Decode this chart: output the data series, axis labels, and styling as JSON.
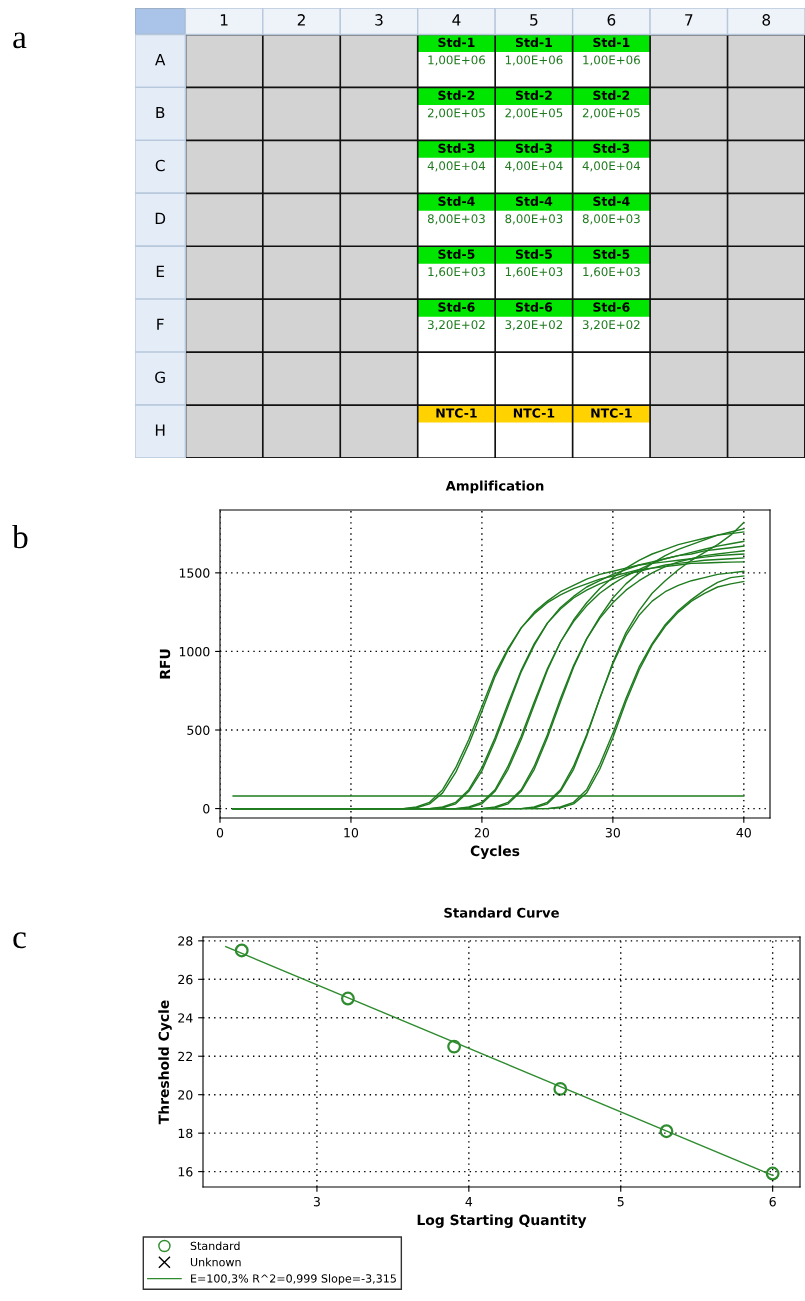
{
  "chart_data": [
    {
      "type": "heatmap",
      "annotations": [
        "a"
      ],
      "cells": [
        [
          null,
          null,
          null,
          null,
          null,
          null,
          null,
          null
        ],
        [
          null,
          null,
          null,
          null,
          null,
          null,
          null,
          null
        ],
        [
          null,
          null,
          null,
          null,
          null,
          null,
          null,
          null
        ],
        [
          null,
          null,
          null,
          null,
          null,
          null,
          null,
          null
        ],
        [
          null,
          null,
          null,
          null,
          null,
          null,
          null,
          null
        ],
        [
          null,
          null,
          null,
          null,
          null,
          null,
          null,
          null
        ],
        [
          null,
          null,
          null,
          null,
          null,
          null,
          null,
          null
        ],
        [
          null,
          null,
          null,
          null,
          null,
          null,
          null,
          null
        ]
      ],
      "categories": [
        "1",
        "2",
        "3",
        "4",
        "5",
        "6",
        "7",
        "8"
      ],
      "y_categories": [
        "A",
        "B",
        "C",
        "D",
        "E",
        "F",
        "G",
        "H"
      ],
      "cell_labels": [
        [
          null,
          null,
          null,
          "Std-1\n1,00E+06",
          "Std-1\n1,00E+06",
          "Std-1\n1,00E+06",
          null,
          null
        ],
        [
          null,
          null,
          null,
          "Std-2\n2,00E+05",
          "Std-2\n2,00E+05",
          "Std-2\n2,00E+05",
          null,
          null
        ],
        [
          null,
          null,
          null,
          "Std-3\n4,00E+04",
          "Std-3\n4,00E+04",
          "Std-3\n4,00E+04",
          null,
          null
        ],
        [
          null,
          null,
          null,
          "Std-4\n8,00E+03",
          "Std-4\n8,00E+03",
          "Std-4\n8,00E+03",
          null,
          null
        ],
        [
          null,
          null,
          null,
          "Std-5\n1,60E+03",
          "Std-5\n1,60E+03",
          "Std-5\n1,60E+03",
          null,
          null
        ],
        [
          null,
          null,
          null,
          "Std-6\n3,20E+02",
          "Std-6\n3,20E+02",
          "Std-6\n3,20E+02",
          null,
          null
        ],
        [
          null,
          null,
          null,
          null,
          null,
          null,
          null,
          null
        ],
        [
          null,
          null,
          null,
          "NTC-1",
          "NTC-1",
          "NTC-1",
          null,
          null
        ]
      ],
      "colors": [
        [
          null,
          null,
          null,
          "#00e600",
          "#00e600",
          "#00e600",
          null,
          null
        ],
        [
          null,
          null,
          null,
          "#00e600",
          "#00e600",
          "#00e600",
          null,
          null
        ],
        [
          null,
          null,
          null,
          "#00e600",
          "#00e600",
          "#00e600",
          null,
          null
        ],
        [
          null,
          null,
          null,
          "#00e600",
          "#00e600",
          "#00e600",
          null,
          null
        ],
        [
          null,
          null,
          null,
          "#00e600",
          "#00e600",
          "#00e600",
          null,
          null
        ],
        [
          null,
          null,
          null,
          "#00e600",
          "#00e600",
          "#00e600",
          null,
          null
        ],
        [
          null,
          null,
          null,
          "#ffffff",
          "#ffffff",
          "#ffffff",
          null,
          null
        ],
        [
          null,
          null,
          null,
          "#ffd200",
          "#ffd200",
          "#ffd200",
          null,
          null
        ]
      ]
    },
    {
      "type": "line",
      "title": "Amplification",
      "xlabel": "Cycles",
      "ylabel": "RFU",
      "annotations": [
        "b"
      ],
      "xlim": [
        0,
        42
      ],
      "ylim": [
        -60,
        1900
      ],
      "xticks": [
        0,
        10,
        20,
        30,
        40
      ],
      "yticks": [
        0,
        500,
        1000,
        1500
      ],
      "grid": true,
      "marker": "none",
      "x": [
        1,
        2,
        3,
        4,
        5,
        6,
        7,
        8,
        9,
        10,
        11,
        12,
        13,
        14,
        15,
        16,
        17,
        18,
        19,
        20,
        21,
        22,
        23,
        24,
        25,
        26,
        27,
        28,
        29,
        30,
        31,
        32,
        33,
        34,
        35,
        36,
        37,
        38,
        39,
        40
      ],
      "series": [
        {
          "color": "#1e7b1e",
          "values": [
            0,
            0,
            0,
            0,
            0,
            0,
            0,
            0,
            0,
            0,
            0,
            0,
            0,
            0,
            10,
            40,
            120,
            260,
            440,
            650,
            860,
            1020,
            1150,
            1240,
            1310,
            1360,
            1400,
            1430,
            1460,
            1480,
            1500,
            1520,
            1530,
            1540,
            1550,
            1560,
            1563,
            1566,
            1568,
            1570
          ]
        },
        {
          "color": "#1e7b1e",
          "values": [
            0,
            0,
            0,
            0,
            0,
            0,
            0,
            0,
            0,
            0,
            0,
            0,
            0,
            0,
            5,
            30,
            100,
            230,
            410,
            620,
            840,
            1010,
            1150,
            1250,
            1320,
            1380,
            1420,
            1460,
            1490,
            1510,
            1530,
            1550,
            1560,
            1570,
            1580,
            1590,
            1600,
            1610,
            1615,
            1620
          ]
        },
        {
          "color": "#1e7b1e",
          "values": [
            0,
            0,
            0,
            0,
            0,
            0,
            0,
            0,
            0,
            0,
            0,
            0,
            0,
            0,
            0,
            0,
            10,
            40,
            120,
            260,
            450,
            670,
            880,
            1050,
            1180,
            1270,
            1340,
            1390,
            1430,
            1460,
            1490,
            1510,
            1530,
            1550,
            1560,
            1570,
            1580,
            1585,
            1590,
            1595
          ]
        },
        {
          "color": "#1e7b1e",
          "values": [
            0,
            0,
            0,
            0,
            0,
            0,
            0,
            0,
            0,
            0,
            0,
            0,
            0,
            0,
            0,
            0,
            5,
            30,
            110,
            240,
            430,
            650,
            870,
            1040,
            1180,
            1280,
            1350,
            1410,
            1450,
            1490,
            1520,
            1550,
            1570,
            1590,
            1610,
            1620,
            1640,
            1650,
            1660,
            1670
          ]
        },
        {
          "color": "#1e7b1e",
          "values": [
            0,
            0,
            0,
            0,
            0,
            0,
            0,
            0,
            0,
            0,
            0,
            0,
            0,
            0,
            0,
            0,
            0,
            0,
            10,
            40,
            120,
            270,
            460,
            680,
            890,
            1060,
            1190,
            1290,
            1370,
            1430,
            1480,
            1520,
            1560,
            1590,
            1610,
            1630,
            1650,
            1670,
            1685,
            1700
          ]
        },
        {
          "color": "#1e7b1e",
          "values": [
            0,
            0,
            0,
            0,
            0,
            0,
            0,
            0,
            0,
            0,
            0,
            0,
            0,
            0,
            0,
            0,
            0,
            0,
            5,
            30,
            110,
            250,
            440,
            660,
            880,
            1060,
            1200,
            1310,
            1400,
            1470,
            1530,
            1580,
            1620,
            1650,
            1680,
            1700,
            1720,
            1740,
            1750,
            1760
          ]
        },
        {
          "color": "#1e7b1e",
          "values": [
            0,
            0,
            0,
            0,
            0,
            0,
            0,
            0,
            0,
            0,
            0,
            0,
            0,
            0,
            0,
            0,
            0,
            0,
            0,
            0,
            10,
            40,
            120,
            270,
            470,
            700,
            910,
            1080,
            1210,
            1310,
            1390,
            1450,
            1500,
            1540,
            1570,
            1590,
            1610,
            1620,
            1630,
            1640
          ]
        },
        {
          "color": "#1e7b1e",
          "values": [
            0,
            0,
            0,
            0,
            0,
            0,
            0,
            0,
            0,
            0,
            0,
            0,
            0,
            0,
            0,
            0,
            0,
            0,
            0,
            0,
            5,
            30,
            110,
            250,
            450,
            680,
            900,
            1080,
            1220,
            1340,
            1430,
            1500,
            1560,
            1610,
            1650,
            1680,
            1710,
            1740,
            1760,
            1780
          ]
        },
        {
          "color": "#1e7b1e",
          "values": [
            0,
            0,
            0,
            0,
            0,
            0,
            0,
            0,
            0,
            0,
            0,
            0,
            0,
            0,
            0,
            0,
            0,
            0,
            0,
            0,
            0,
            0,
            0,
            10,
            40,
            120,
            270,
            470,
            700,
            920,
            1100,
            1230,
            1320,
            1380,
            1420,
            1450,
            1470,
            1490,
            1500,
            1510
          ]
        },
        {
          "color": "#1e7b1e",
          "values": [
            0,
            0,
            0,
            0,
            0,
            0,
            0,
            0,
            0,
            0,
            0,
            0,
            0,
            0,
            0,
            0,
            0,
            0,
            0,
            0,
            0,
            0,
            0,
            5,
            30,
            110,
            250,
            460,
            700,
            930,
            1120,
            1260,
            1370,
            1450,
            1520,
            1580,
            1630,
            1680,
            1740,
            1820
          ]
        },
        {
          "color": "#1e7b1e",
          "values": [
            0,
            0,
            0,
            0,
            0,
            0,
            0,
            0,
            0,
            0,
            0,
            0,
            0,
            0,
            0,
            0,
            0,
            0,
            0,
            0,
            0,
            0,
            0,
            0,
            0,
            10,
            40,
            120,
            280,
            480,
            700,
            900,
            1050,
            1170,
            1260,
            1330,
            1390,
            1440,
            1470,
            1480
          ]
        },
        {
          "color": "#1e7b1e",
          "values": [
            0,
            0,
            0,
            0,
            0,
            0,
            0,
            0,
            0,
            0,
            0,
            0,
            0,
            0,
            0,
            0,
            0,
            0,
            0,
            0,
            0,
            0,
            0,
            0,
            0,
            5,
            30,
            100,
            250,
            450,
            680,
            880,
            1040,
            1160,
            1250,
            1320,
            1370,
            1410,
            1430,
            1445
          ]
        },
        {
          "color": "#1e7b1e",
          "x": [
            1,
            40
          ],
          "values": [
            80,
            80
          ]
        }
      ]
    },
    {
      "type": "scatter",
      "title": "Standard Curve",
      "xlabel": "Log Starting Quantity",
      "ylabel": "Threshold Cycle",
      "annotations": [
        "c"
      ],
      "xlim": [
        2.25,
        6.18
      ],
      "ylim": [
        15.2,
        28.2
      ],
      "xticks": [
        3,
        4,
        5,
        6
      ],
      "yticks": [
        16,
        18,
        20,
        22,
        24,
        26,
        28
      ],
      "grid": true,
      "legend": "bottom left",
      "series": [
        {
          "name": "Standard",
          "type": "scatter",
          "marker": "circle",
          "color": "#2e8b2e",
          "x": [
            2.505,
            3.204,
            3.903,
            4.602,
            5.301,
            6.0
          ],
          "values": [
            27.5,
            25.0,
            22.5,
            20.3,
            18.1,
            15.9
          ]
        },
        {
          "name": "Unknown",
          "type": "scatter",
          "marker": "cross",
          "color": "#000000"
        },
        {
          "name": "E=100,3% R^2=0,999 Slope=-3,315",
          "type": "line",
          "marker": "none",
          "color": "#2e8b2e",
          "x": [
            2.4,
            6.0
          ],
          "values": [
            27.7,
            15.8
          ]
        }
      ]
    }
  ]
}
